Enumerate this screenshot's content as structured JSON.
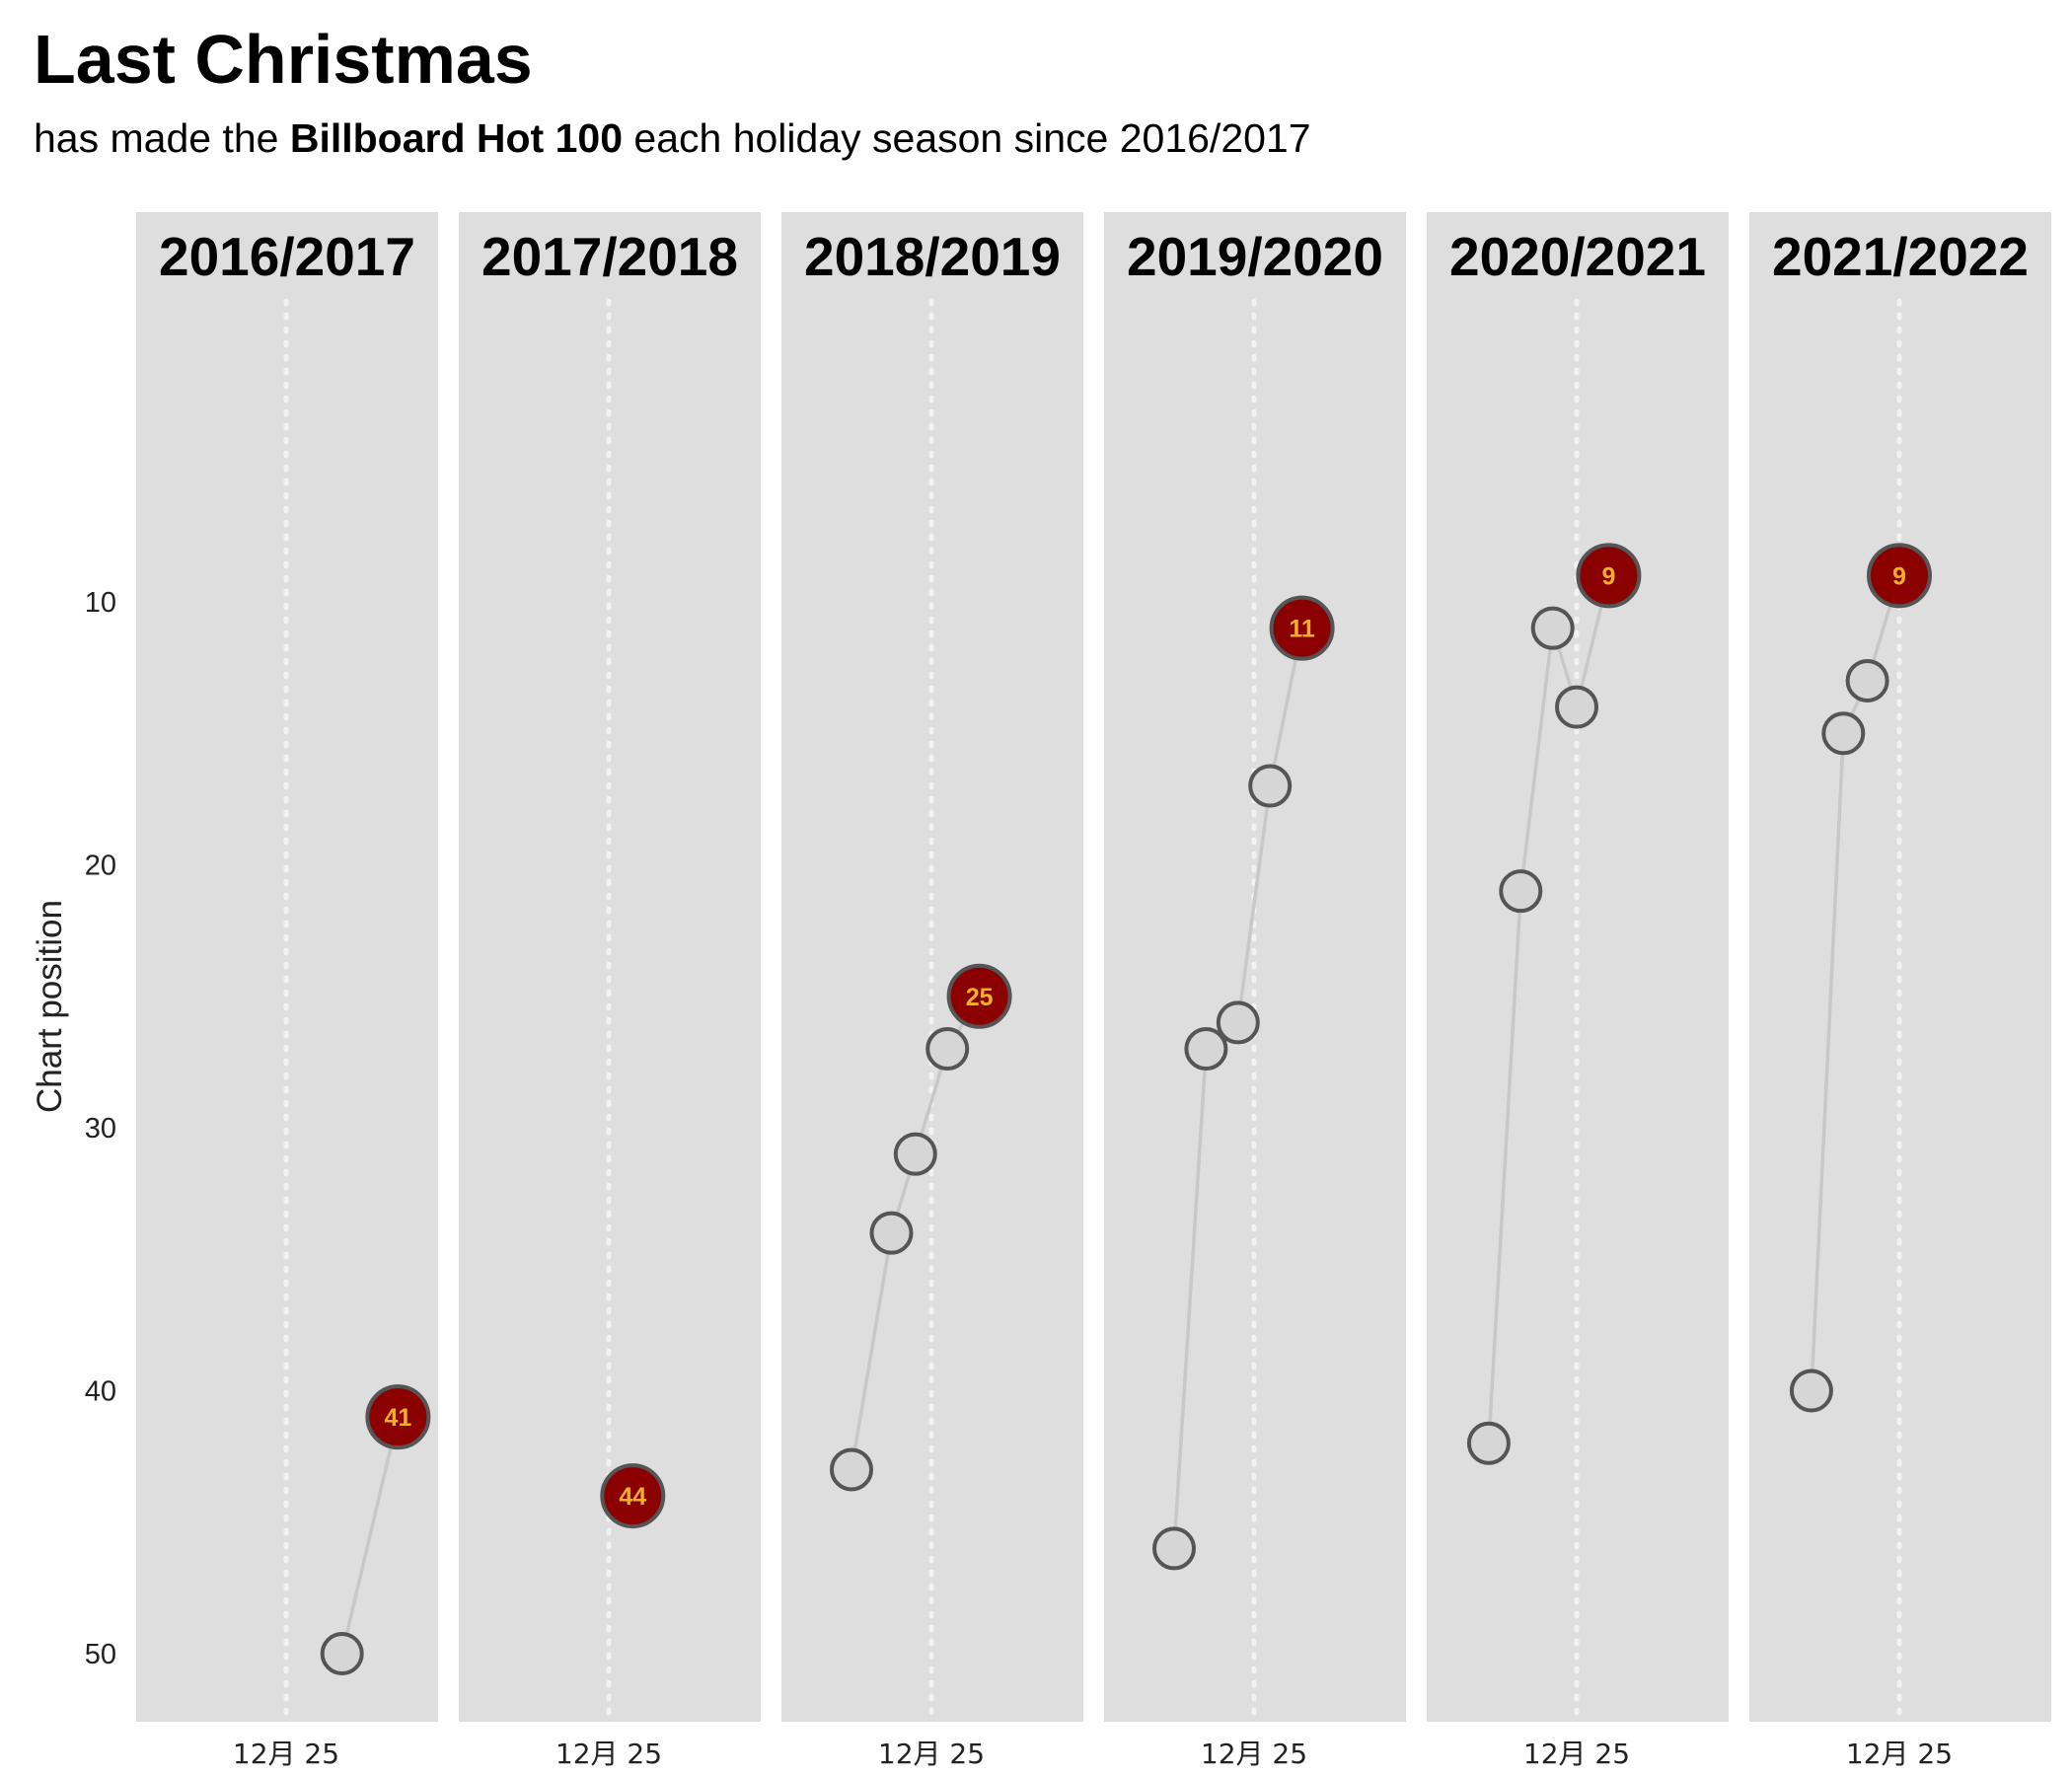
{
  "header": {
    "title": "Last Christmas",
    "subtitle_prefix": "has made the ",
    "subtitle_bold": "Billboard Hot 100",
    "subtitle_suffix": " each holiday season since 2016/2017"
  },
  "chart_data": {
    "type": "scatter",
    "facets": "by holiday season",
    "ylabel": "Chart position",
    "y_reversed": true,
    "ylim": [
      52,
      0
    ],
    "yticks": [
      10,
      20,
      30,
      40,
      50
    ],
    "x_unit": "days relative to Dec 25",
    "x_tick_label": "12月 25",
    "x_range": [
      -30,
      18
    ],
    "reference_line": "12月 25",
    "colors": {
      "panel_background": "#dedede",
      "point_fill": "#d6d6d6",
      "final_point_fill": "#8b0000",
      "label_color": "#f2b02a",
      "line_color": "#c8c8c8"
    },
    "series": [
      {
        "name": "2016/2017",
        "points": [
          {
            "x": 7,
            "y": 50
          },
          {
            "x": 14,
            "y": 41
          }
        ],
        "final_label": "41"
      },
      {
        "name": "2017/2018",
        "points": [
          {
            "x": 3,
            "y": 44
          }
        ],
        "final_label": "44"
      },
      {
        "name": "2018/2019",
        "points": [
          {
            "x": -10,
            "y": 43
          },
          {
            "x": -5,
            "y": 34
          },
          {
            "x": -2,
            "y": 31
          },
          {
            "x": 2,
            "y": 27
          },
          {
            "x": 6,
            "y": 25
          }
        ],
        "final_label": "25"
      },
      {
        "name": "2019/2020",
        "points": [
          {
            "x": -10,
            "y": 46
          },
          {
            "x": -6,
            "y": 27
          },
          {
            "x": -2,
            "y": 26
          },
          {
            "x": 2,
            "y": 17
          },
          {
            "x": 6,
            "y": 11
          }
        ],
        "final_label": "11"
      },
      {
        "name": "2020/2021",
        "points": [
          {
            "x": -11,
            "y": 42
          },
          {
            "x": -7,
            "y": 21
          },
          {
            "x": -3,
            "y": 11
          },
          {
            "x": 0,
            "y": 14
          },
          {
            "x": 4,
            "y": 9
          }
        ],
        "final_label": "9"
      },
      {
        "name": "2021/2022",
        "points": [
          {
            "x": -11,
            "y": 40
          },
          {
            "x": -7,
            "y": 15
          },
          {
            "x": -4,
            "y": 13
          },
          {
            "x": 0,
            "y": 9
          }
        ],
        "final_label": "9"
      }
    ]
  }
}
